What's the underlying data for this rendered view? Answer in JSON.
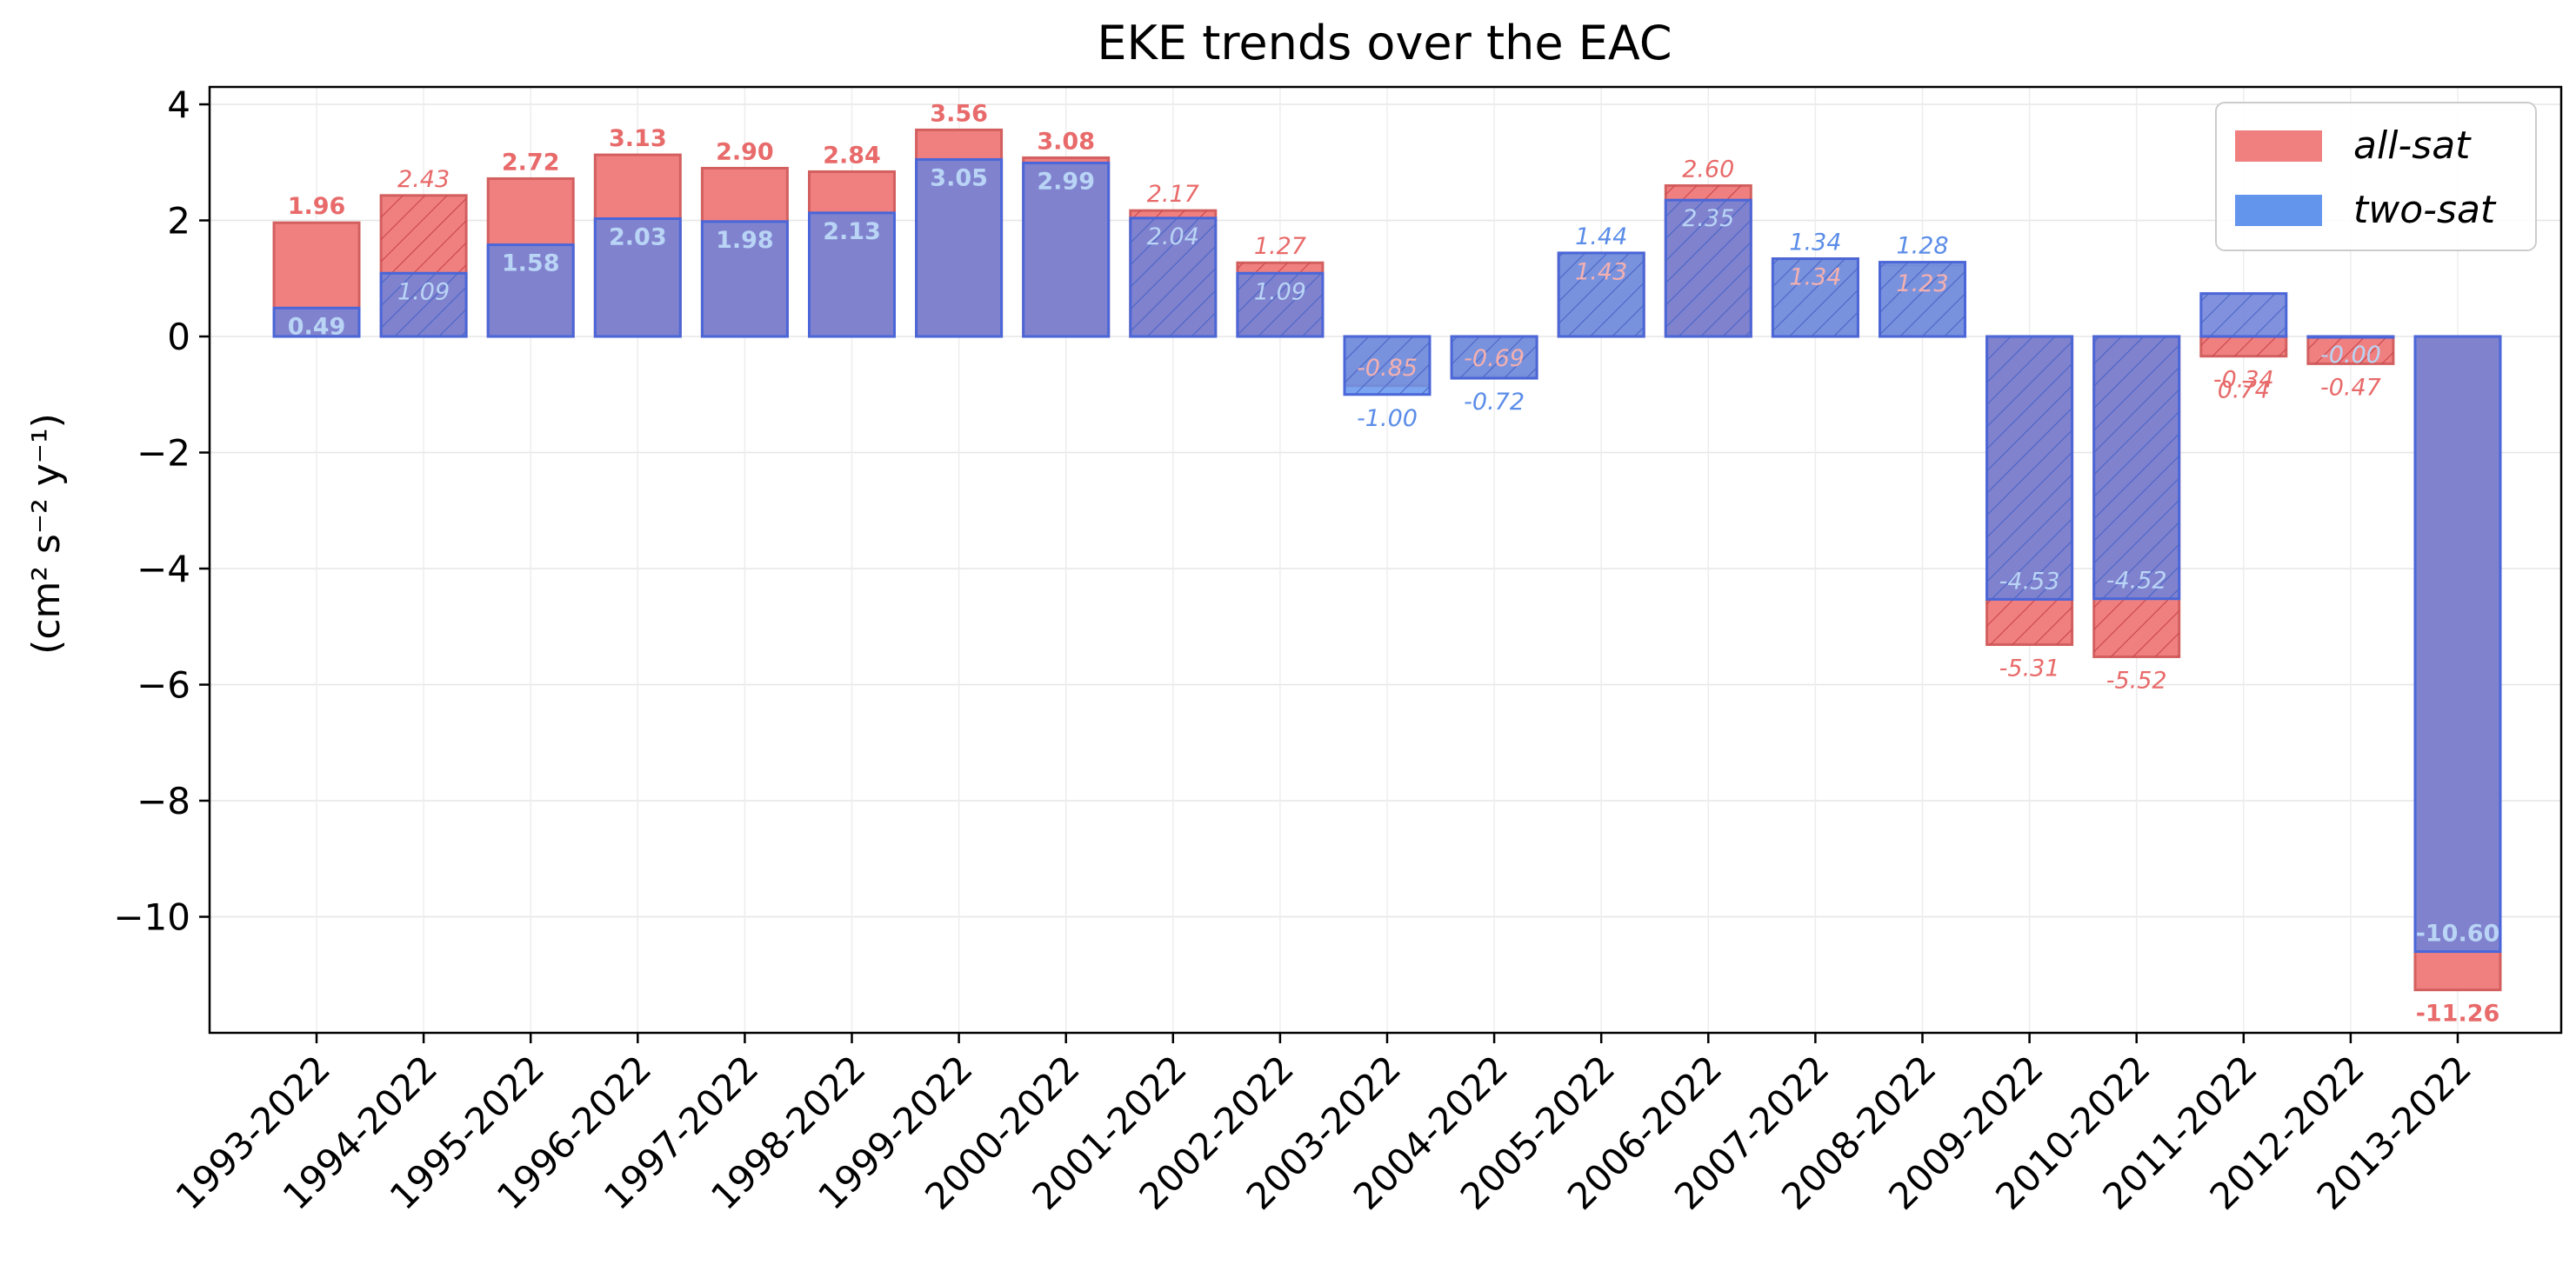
{
  "chart_data": {
    "type": "bar",
    "title": "EKE trends over the EAC",
    "ylabel": "(cm² s⁻² y⁻¹)",
    "xlabel": "",
    "ylim": [
      -12,
      4.3
    ],
    "yticks": [
      4,
      2,
      0,
      -2,
      -4,
      -6,
      -8,
      -10
    ],
    "ytick_labels": [
      "4",
      "2",
      "0",
      "−2",
      "−4",
      "−6",
      "−8",
      "−10"
    ],
    "grid": true,
    "legend_position": "top-right",
    "categories": [
      "1993-2022",
      "1994-2022",
      "1995-2022",
      "1996-2022",
      "1997-2022",
      "1998-2022",
      "1999-2022",
      "2000-2022",
      "2001-2022",
      "2002-2022",
      "2003-2022",
      "2004-2022",
      "2005-2022",
      "2006-2022",
      "2007-2022",
      "2008-2022",
      "2009-2022",
      "2010-2022",
      "2011-2022",
      "2012-2022",
      "2013-2022"
    ],
    "series": [
      {
        "name": "all-sat",
        "color": "#f08080",
        "values": [
          1.96,
          2.43,
          2.72,
          3.13,
          2.9,
          2.84,
          3.56,
          3.08,
          2.17,
          1.27,
          -0.85,
          -0.69,
          1.43,
          2.6,
          1.34,
          1.23,
          -5.31,
          -5.52,
          -0.34,
          -0.47,
          -11.26
        ],
        "labels": [
          "1.96",
          "2.43",
          "2.72",
          "3.13",
          "2.90",
          "2.84",
          "3.56",
          "3.08",
          "2.17",
          "1.27",
          "-0.85",
          "-0.69",
          "1.43",
          "2.60",
          "1.34",
          "1.23",
          "-5.31",
          "-5.52",
          "-0.34",
          "-0.47",
          "-11.26"
        ]
      },
      {
        "name": "two-sat",
        "color": "#6495ed",
        "values": [
          0.49,
          1.09,
          1.58,
          2.03,
          1.98,
          2.13,
          3.05,
          2.99,
          2.04,
          1.09,
          -1.0,
          -0.72,
          1.44,
          2.35,
          1.34,
          1.28,
          -4.53,
          -4.52,
          0.74,
          -0.0,
          -10.6
        ],
        "labels": [
          "0.49",
          "1.09",
          "1.58",
          "2.03",
          "1.98",
          "2.13",
          "3.05",
          "2.99",
          "2.04",
          "1.09",
          "-1.00",
          "-0.72",
          "1.44",
          "2.35",
          "1.34",
          "1.28",
          "-4.53",
          "-4.52",
          "0.74",
          "-0.00",
          "-10.60"
        ]
      }
    ],
    "significant": [
      true,
      false,
      true,
      true,
      true,
      true,
      true,
      true,
      false,
      false,
      false,
      false,
      false,
      false,
      false,
      false,
      false,
      false,
      false,
      false,
      true
    ]
  }
}
